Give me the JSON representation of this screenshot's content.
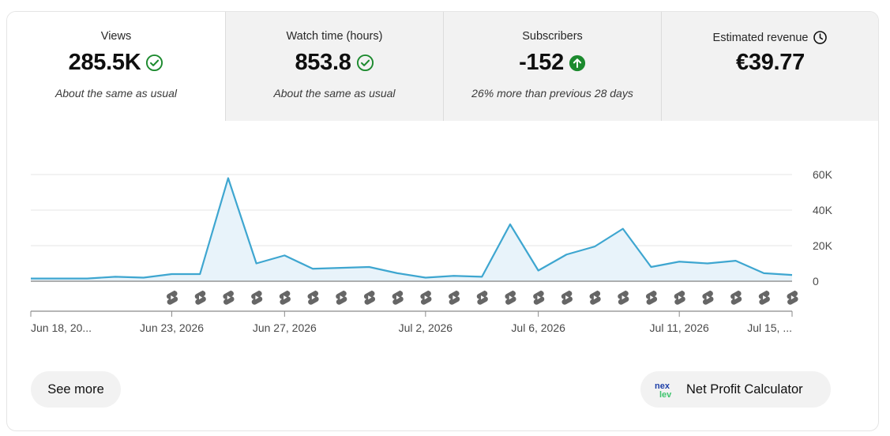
{
  "tabs": [
    {
      "title": "Views",
      "value": "285.5K",
      "status": "About the same as usual",
      "status_icon": "check-circle-icon",
      "active": true
    },
    {
      "title": "Watch time (hours)",
      "value": "853.8",
      "status": "About the same as usual",
      "status_icon": "check-circle-icon",
      "active": false
    },
    {
      "title": "Subscribers",
      "value": "-152",
      "status": "26% more than previous 28 days",
      "status_icon": "arrow-up-circle-icon",
      "active": false
    },
    {
      "title": "Estimated revenue",
      "value": "€39.77",
      "status": "",
      "status_icon": "clock-icon",
      "active": false
    }
  ],
  "colors": {
    "line": "#3ea6d0",
    "fill": "#e8f3fa",
    "check": "#1c8a2e",
    "up": "#1c8a2e",
    "grid": "#e6e6e6",
    "axis": "#6f6f6f",
    "shorts_icon": "#666666"
  },
  "chart_data": {
    "type": "area",
    "series": [
      {
        "values": [
          1500,
          1500,
          1500,
          2500,
          2000,
          4000,
          4000,
          58000,
          10000,
          14500,
          7000,
          7500,
          8000,
          4500,
          2000,
          3000,
          2500,
          32000,
          6000,
          15000,
          19500,
          29500,
          8000,
          11000,
          10000,
          11500,
          4500,
          3500
        ]
      }
    ],
    "yticks": [
      "60K",
      "40K",
      "20K",
      "0"
    ],
    "ytick_values": [
      60000,
      40000,
      20000,
      0
    ],
    "ylim": [
      0,
      60000
    ],
    "xtick_labels": [
      "Jun 18, 20...",
      "Jun 23, 2026",
      "Jun 27, 2026",
      "Jul 2, 2026",
      "Jul 6, 2026",
      "Jul 11, 2026",
      "Jul 15, ..."
    ],
    "xtick_index": [
      0,
      5,
      9,
      14,
      18,
      23,
      27
    ],
    "shorts_markers_index": [
      5,
      6,
      7,
      8,
      9,
      10,
      11,
      12,
      13,
      14,
      15,
      16,
      17,
      18,
      19,
      20,
      21,
      22,
      23,
      24,
      25,
      26,
      27
    ],
    "marker_icon": "shorts-icon",
    "grid": true
  },
  "buttons": {
    "see_more": "See more",
    "net_profit": "Net Profit Calculator",
    "net_profit_logo": "nexlev-logo"
  }
}
